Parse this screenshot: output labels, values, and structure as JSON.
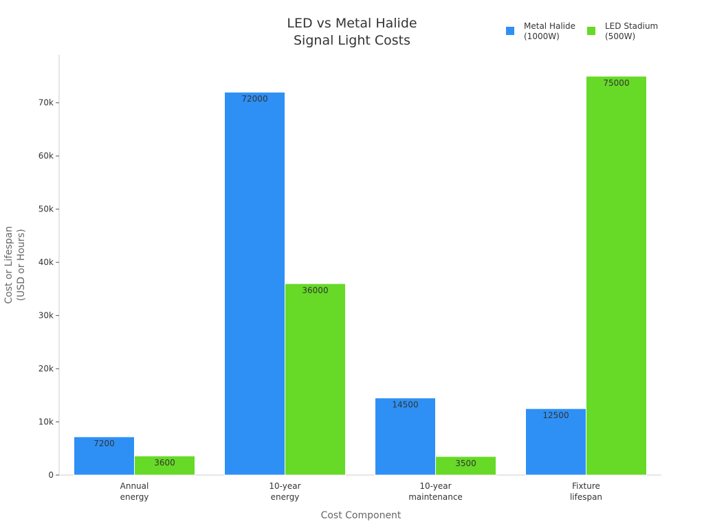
{
  "chart_data": {
    "type": "bar",
    "title_lines": [
      "LED vs Metal Halide",
      "Signal Light Costs"
    ],
    "xlabel": "Cost Component",
    "ylabel_lines": [
      "Cost or Lifespan",
      "(USD or Hours)"
    ],
    "categories": [
      [
        "Annual",
        "energy"
      ],
      [
        "10-year",
        "energy"
      ],
      [
        "10-year",
        "maintenance"
      ],
      [
        "Fixture",
        "lifespan"
      ]
    ],
    "series": [
      {
        "name_lines": [
          "Metal Halide",
          "(1000W)"
        ],
        "color": "#2E90F5",
        "values": [
          7200,
          72000,
          14500,
          12500
        ]
      },
      {
        "name_lines": [
          "LED Stadium",
          "(500W)"
        ],
        "color": "#66DA26",
        "values": [
          3600,
          36000,
          3500,
          75000
        ]
      }
    ],
    "ylim": [
      0,
      79000
    ],
    "yticks": [
      0,
      10000,
      20000,
      30000,
      40000,
      50000,
      60000,
      70000
    ],
    "ytick_labels": [
      "0",
      "10k",
      "20k",
      "30k",
      "40k",
      "50k",
      "60k",
      "70k"
    ],
    "grid": false,
    "legend_position": "top-right",
    "data_labels": true
  }
}
